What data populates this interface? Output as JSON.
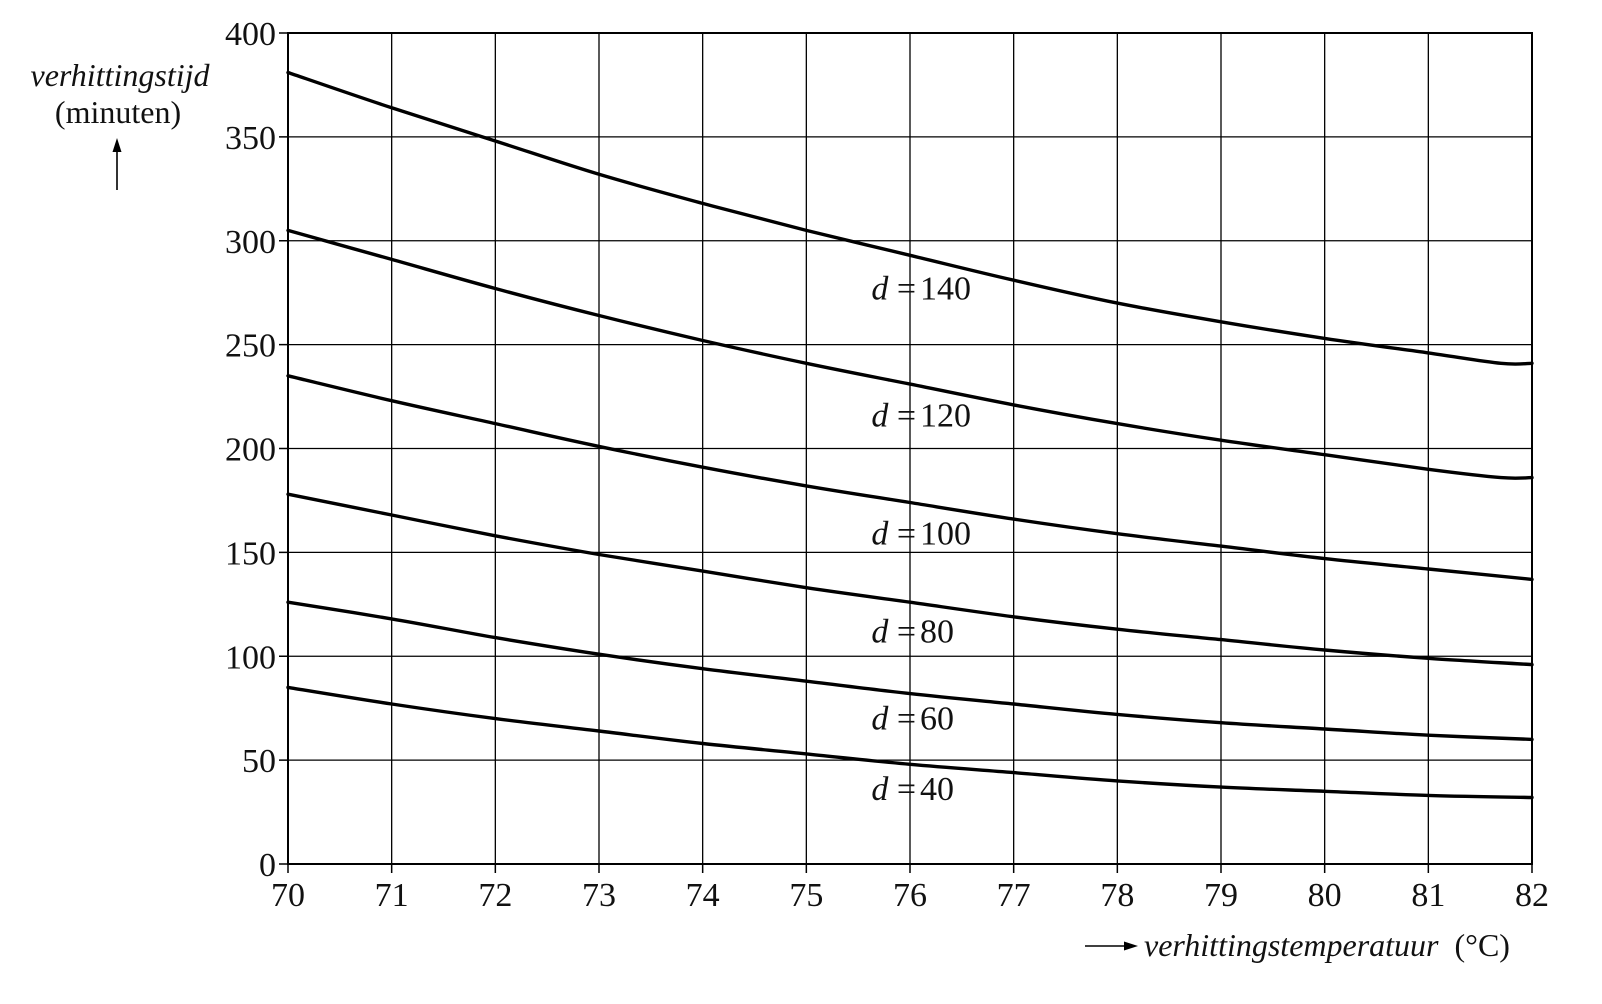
{
  "chart_data": {
    "type": "line",
    "ylabel_main": "verhittingstijd",
    "ylabel_unit": "(minuten)",
    "xlabel_main": "verhittingstemperatuur",
    "xlabel_unit": "(°C)",
    "xlim": [
      70,
      82
    ],
    "ylim": [
      0,
      400
    ],
    "x_ticks": [
      70,
      71,
      72,
      73,
      74,
      75,
      76,
      77,
      78,
      79,
      80,
      81,
      82
    ],
    "y_ticks": [
      0,
      50,
      100,
      150,
      200,
      250,
      300,
      350,
      400
    ],
    "grid": true,
    "series": [
      {
        "name": "140",
        "label_x": 76,
        "label_y": 277,
        "x": [
          70,
          71,
          72,
          73,
          74,
          75,
          76,
          77,
          78,
          79,
          80,
          81,
          81.7,
          82
        ],
        "y": [
          381,
          364,
          348,
          332,
          318,
          305,
          293,
          281,
          270,
          261,
          253,
          246,
          241,
          241
        ]
      },
      {
        "name": "120",
        "label_x": 76,
        "label_y": 216,
        "x": [
          70,
          71,
          72,
          73,
          74,
          75,
          76,
          77,
          78,
          79,
          80,
          81,
          81.7,
          82
        ],
        "y": [
          305,
          291,
          277,
          264,
          252,
          241,
          231,
          221,
          212,
          204,
          197,
          190,
          186,
          186
        ]
      },
      {
        "name": "100",
        "label_x": 76,
        "label_y": 159,
        "x": [
          70,
          71,
          72,
          73,
          74,
          75,
          76,
          77,
          78,
          79,
          80,
          81,
          82
        ],
        "y": [
          235,
          223,
          212,
          201,
          191,
          182,
          174,
          166,
          159,
          153,
          147,
          142,
          137
        ]
      },
      {
        "name": "80",
        "label_x": 76,
        "label_y": 112,
        "x": [
          70,
          71,
          72,
          73,
          74,
          75,
          76,
          77,
          78,
          79,
          80,
          81,
          82
        ],
        "y": [
          178,
          168,
          158,
          149,
          141,
          133,
          126,
          119,
          113,
          108,
          103,
          99,
          96
        ]
      },
      {
        "name": "60",
        "label_x": 76,
        "label_y": 70,
        "x": [
          70,
          71,
          72,
          73,
          74,
          75,
          76,
          77,
          78,
          79,
          80,
          81,
          82
        ],
        "y": [
          126,
          118,
          109,
          101,
          94,
          88,
          82,
          77,
          72,
          68,
          65,
          62,
          60
        ]
      },
      {
        "name": "40",
        "label_x": 76,
        "label_y": 36,
        "x": [
          70,
          71,
          72,
          73,
          74,
          75,
          76,
          77,
          78,
          79,
          80,
          81,
          82
        ],
        "y": [
          85,
          77,
          70,
          64,
          58,
          53,
          48,
          44,
          40,
          37,
          35,
          33,
          32
        ]
      }
    ]
  }
}
